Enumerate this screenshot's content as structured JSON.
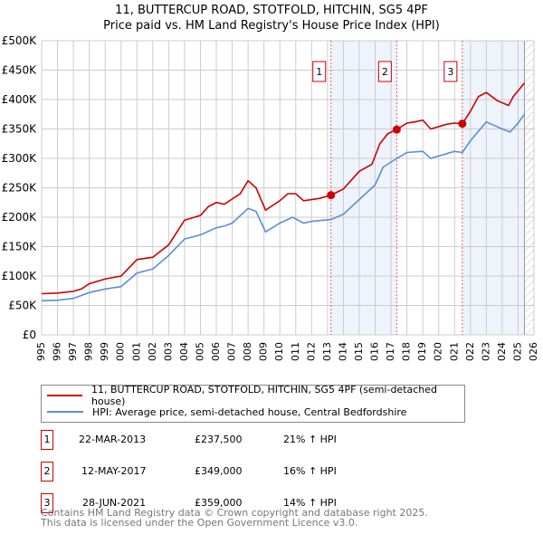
{
  "title": "11, BUTTERCUP ROAD, STOTFOLD, HITCHIN, SG5 4PF",
  "subtitle": "Price paid vs. HM Land Registry's House Price Index (HPI)",
  "chart_data": {
    "type": "line",
    "xlim": [
      1995,
      2026
    ],
    "ylim": [
      0,
      500000
    ],
    "yticks": [
      {
        "v": 0,
        "label": "£0"
      },
      {
        "v": 50000,
        "label": "£50K"
      },
      {
        "v": 100000,
        "label": "£100K"
      },
      {
        "v": 150000,
        "label": "£150K"
      },
      {
        "v": 200000,
        "label": "£200K"
      },
      {
        "v": 250000,
        "label": "£250K"
      },
      {
        "v": 300000,
        "label": "£300K"
      },
      {
        "v": 350000,
        "label": "£350K"
      },
      {
        "v": 400000,
        "label": "£400K"
      },
      {
        "v": 450000,
        "label": "£450K"
      },
      {
        "v": 500000,
        "label": "£500K"
      }
    ],
    "xticks": [
      "1995",
      "1996",
      "1997",
      "1998",
      "1999",
      "2000",
      "2001",
      "2002",
      "2003",
      "2004",
      "2005",
      "2006",
      "2007",
      "2008",
      "2009",
      "2010",
      "2011",
      "2012",
      "2013",
      "2014",
      "2015",
      "2016",
      "2017",
      "2018",
      "2019",
      "2020",
      "2021",
      "2022",
      "2023",
      "2024",
      "2025",
      "2026"
    ],
    "shaded_ranges": [
      [
        2013.22,
        2017.36
      ],
      [
        2021.49,
        2025.4
      ]
    ],
    "hatched_from": 2025.4,
    "series": [
      {
        "name": "11, BUTTERCUP ROAD, STOTFOLD, HITCHIN, SG5 4PF (semi-detached house)",
        "color": "#cc0000",
        "x": [
          1995,
          1996,
          1997,
          1997.5,
          1998,
          1999,
          2000,
          2001,
          2002,
          2003,
          2004,
          2005,
          2005.5,
          2006,
          2006.5,
          2007.5,
          2008,
          2008.5,
          2009.1,
          2010,
          2010.5,
          2011,
          2011.5,
          2012.5,
          2013.22,
          2014,
          2015,
          2015.8,
          2016.3,
          2016.8,
          2017.36,
          2018,
          2018.5,
          2019,
          2019.5,
          2020.5,
          2021,
          2021.49,
          2022,
          2022.5,
          2023,
          2023.7,
          2024.4,
          2024.7,
          2025.4
        ],
        "y": [
          70000,
          71000,
          74000,
          78000,
          87000,
          95000,
          100000,
          128000,
          132000,
          153000,
          195000,
          203000,
          218000,
          225000,
          222000,
          240000,
          262000,
          250000,
          212000,
          228000,
          240000,
          240000,
          228000,
          232000,
          237500,
          248000,
          278000,
          290000,
          325000,
          342000,
          349000,
          360000,
          362000,
          365000,
          350000,
          358000,
          360000,
          359000,
          380000,
          405000,
          412000,
          398000,
          390000,
          405000,
          428000
        ]
      },
      {
        "name": "HPI: Average price, semi-detached house, Central Bedfordshire",
        "color": "#5b8ed6",
        "x": [
          1995,
          1996,
          1997,
          1998,
          1999,
          2000,
          2001,
          2002,
          2003,
          2004,
          2005,
          2006,
          2006.5,
          2007,
          2008,
          2008.5,
          2009.1,
          2010,
          2010.8,
          2011.5,
          2012,
          2013.22,
          2014,
          2015,
          2016,
          2016.5,
          2017.36,
          2018,
          2019,
          2019.5,
          2020.5,
          2021,
          2021.49,
          2022,
          2023,
          2024,
          2024.5,
          2025,
          2025.4
        ],
        "y": [
          58000,
          59000,
          62000,
          72000,
          78000,
          82000,
          105000,
          112000,
          135000,
          163000,
          170000,
          182000,
          185000,
          190000,
          215000,
          210000,
          175000,
          190000,
          200000,
          190000,
          193000,
          196000,
          205000,
          230000,
          255000,
          285000,
          300000,
          310000,
          312000,
          300000,
          308000,
          312000,
          310000,
          330000,
          362000,
          350000,
          345000,
          360000,
          375000
        ]
      }
    ],
    "sales": [
      {
        "n": "1",
        "x": 2013.22,
        "y": 237500
      },
      {
        "n": "2",
        "x": 2017.36,
        "y": 349000
      },
      {
        "n": "3",
        "x": 2021.49,
        "y": 359000
      }
    ]
  },
  "legend": [
    {
      "label": "11, BUTTERCUP ROAD, STOTFOLD, HITCHIN, SG5 4PF (semi-detached house)",
      "color": "#cc0000"
    },
    {
      "label": "HPI: Average price, semi-detached house, Central Bedfordshire",
      "color": "#5b8ed6"
    }
  ],
  "transactions": [
    {
      "n": "1",
      "date": "22-MAR-2013",
      "price": "£237,500",
      "hpi": "21% ↑ HPI"
    },
    {
      "n": "2",
      "date": "12-MAY-2017",
      "price": "£349,000",
      "hpi": "16% ↑ HPI"
    },
    {
      "n": "3",
      "date": "28-JUN-2021",
      "price": "£359,000",
      "hpi": "14% ↑ HPI"
    }
  ],
  "footer": [
    "Contains HM Land Registry data © Crown copyright and database right 2025.",
    "This data is licensed under the Open Government Licence v3.0."
  ]
}
